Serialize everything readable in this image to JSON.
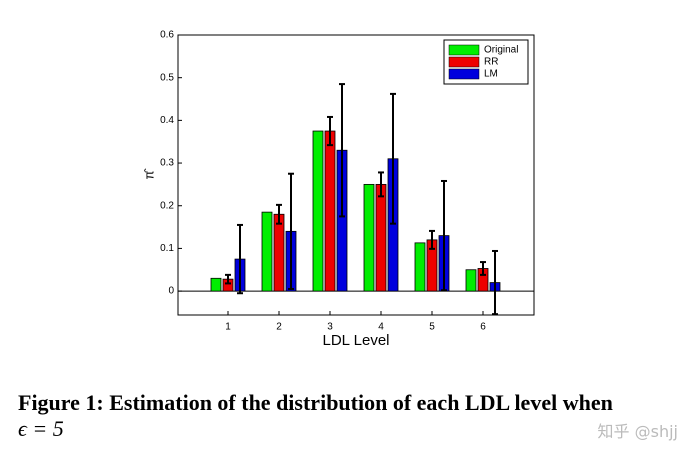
{
  "chart_data": {
    "type": "bar",
    "xlabel": "LDL Level",
    "ylabel": "π̂",
    "categories": [
      "1",
      "2",
      "3",
      "4",
      "5",
      "6"
    ],
    "series": [
      {
        "name": "Original",
        "color": "#00ee00",
        "values": [
          0.03,
          0.185,
          0.375,
          0.25,
          0.113,
          0.05
        ]
      },
      {
        "name": "RR",
        "color": "#ee0000",
        "values": [
          0.028,
          0.18,
          0.375,
          0.25,
          0.12,
          0.053
        ],
        "errors": [
          0.01,
          0.022,
          0.033,
          0.028,
          0.021,
          0.015
        ]
      },
      {
        "name": "LM",
        "color": "#0000dd",
        "values": [
          0.075,
          0.14,
          0.33,
          0.31,
          0.13,
          0.02
        ],
        "errors": [
          0.08,
          0.135,
          0.155,
          0.152,
          0.128,
          0.074
        ]
      }
    ],
    "ylim": [
      -0.056,
      0.6
    ],
    "yticks": [
      0,
      0.1,
      0.2,
      0.3,
      0.4,
      0.5,
      0.6
    ],
    "legend": "upper right"
  },
  "caption": {
    "label": "Figure 1:",
    "text": "Estimation of the distribution of each LDL level when",
    "math": "ϵ = 5"
  },
  "watermark": "知乎 @shjj"
}
